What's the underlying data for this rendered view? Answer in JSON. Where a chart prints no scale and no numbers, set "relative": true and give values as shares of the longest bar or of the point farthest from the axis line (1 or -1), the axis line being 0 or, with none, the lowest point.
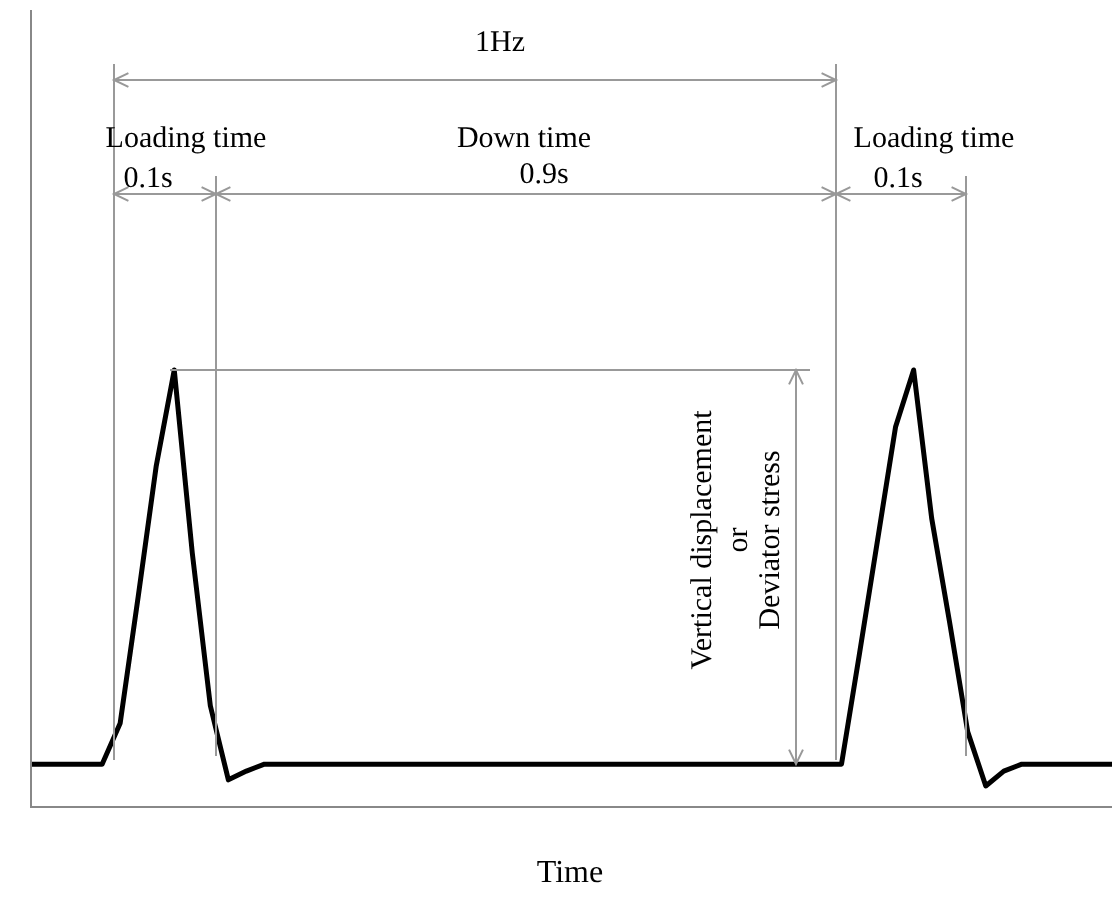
{
  "chart_data": {
    "type": "line",
    "relative": true,
    "xlabel": "Time",
    "categories": [
      null,
      null,
      null,
      null,
      null,
      null,
      null,
      null,
      null,
      null,
      null,
      null,
      null,
      null,
      null,
      null,
      null,
      null,
      null,
      null,
      null,
      null,
      null,
      null,
      null,
      null,
      null,
      null,
      null,
      null,
      null,
      null,
      null,
      null,
      null,
      null,
      null,
      null,
      null,
      null,
      null,
      null,
      null,
      null,
      null,
      null,
      null,
      null,
      null,
      null,
      null,
      null,
      null,
      null,
      null,
      null,
      null,
      null,
      null,
      null,
      null
    ],
    "series": [
      {
        "color": "#000000",
        "values": [
          0.096,
          0.096,
          0.096,
          0.096,
          0.096,
          0.19,
          0.48,
          0.78,
          1,
          0.58,
          0.23,
          0.06,
          0.08,
          0.096,
          0.096,
          0.096,
          0.096,
          0.096,
          0.096,
          0.096,
          0.096,
          0.096,
          0.096,
          0.096,
          0.096,
          0.096,
          0.096,
          0.096,
          0.096,
          0.096,
          0.096,
          0.096,
          0.096,
          0.096,
          0.096,
          0.096,
          0.096,
          0.096,
          0.096,
          0.096,
          0.096,
          0.096,
          0.096,
          0.096,
          0.096,
          0.096,
          0.35,
          0.61,
          0.87,
          1,
          0.66,
          0.42,
          0.17,
          0.046,
          0.08,
          0.096,
          0.096,
          0.096,
          0.096,
          0.096,
          0.096
        ]
      }
    ],
    "annotations": [
      "1Hz",
      "Loading time",
      "0.1s",
      "Down time",
      "0.9s",
      "Loading time",
      "0.1s",
      "Vertical displacement",
      "or",
      "Deviator stress"
    ],
    "marker": "none",
    "line_style": "solid",
    "legend": false
  }
}
